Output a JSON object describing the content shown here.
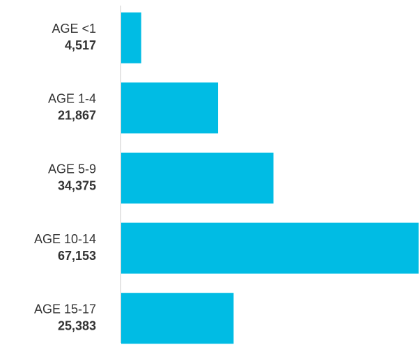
{
  "chart_data": {
    "type": "bar",
    "orientation": "horizontal",
    "categories": [
      "AGE <1",
      "AGE 1-4",
      "AGE 5-9",
      "AGE 10-14",
      "AGE 15-17"
    ],
    "values": [
      4517,
      21867,
      34375,
      67153,
      25383
    ],
    "value_labels": [
      "4,517",
      "21,867",
      "34,375",
      "67,153",
      "25,383"
    ],
    "color": "#00bce4"
  }
}
